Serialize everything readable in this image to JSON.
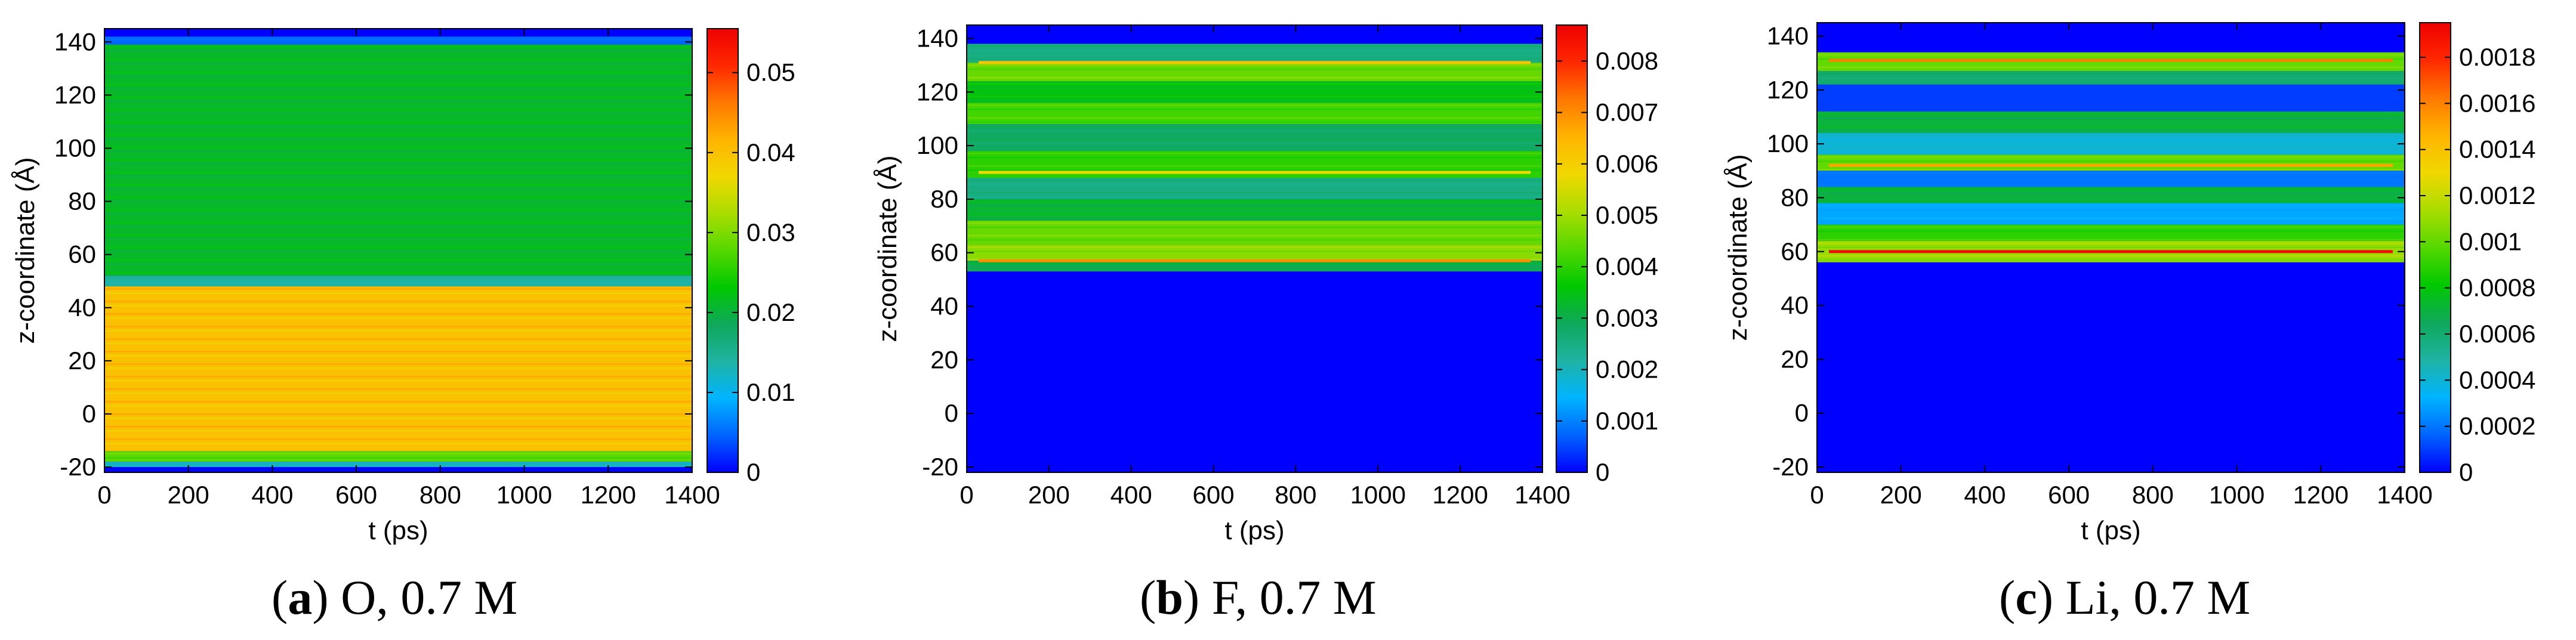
{
  "colors": {
    "colormap": [
      "#0000ff",
      "#0064ff",
      "#00b4ff",
      "#1fb3a3",
      "#0fa85a",
      "#00c800",
      "#55d800",
      "#aadd00",
      "#f0d800",
      "#ffb400",
      "#ff7800",
      "#ff2800",
      "#ee0000"
    ],
    "frame": "#000000"
  },
  "chart_data": [
    {
      "type": "heatmap",
      "panel_id": "a",
      "caption_letter": "a",
      "caption_text": "O, 0.7 M",
      "xlabel": "t (ps)",
      "ylabel": "z-coordinate (Å)",
      "xlim": [
        0,
        1400
      ],
      "ylim": [
        -22,
        145
      ],
      "xticks": [
        "0",
        "200",
        "400",
        "600",
        "800",
        "1000",
        "1200",
        "1400"
      ],
      "yticks": [
        "-20",
        "0",
        "20",
        "40",
        "60",
        "80",
        "100",
        "120",
        "140"
      ],
      "colorbar": {
        "min": 0,
        "max": 0.0555,
        "ticks": [
          "0",
          "0.01",
          "0.02",
          "0.03",
          "0.04",
          "0.05"
        ],
        "tick_values": [
          0,
          0.01,
          0.02,
          0.03,
          0.04,
          0.05
        ]
      },
      "bands": [
        {
          "z_from": 142,
          "z_to": 145,
          "level": 0.0
        },
        {
          "z_from": 139,
          "z_to": 142,
          "level": 0.005
        },
        {
          "z_from": 52,
          "z_to": 139,
          "level": 0.021
        },
        {
          "z_from": 48,
          "z_to": 52,
          "level": 0.014
        },
        {
          "z_from": -14,
          "z_to": 48,
          "level": 0.04
        },
        {
          "z_from": -18,
          "z_to": -14,
          "level": 0.028
        },
        {
          "z_from": -20,
          "z_to": -18,
          "level": 0.012
        },
        {
          "z_from": -22,
          "z_to": -20,
          "level": 0.0
        }
      ],
      "highlights": []
    },
    {
      "type": "heatmap",
      "panel_id": "b",
      "caption_letter": "b",
      "caption_text": "F, 0.7 M",
      "xlabel": "t (ps)",
      "ylabel": "z-coordinate (Å)",
      "xlim": [
        0,
        1400
      ],
      "ylim": [
        -22,
        145
      ],
      "xticks": [
        "0",
        "200",
        "400",
        "600",
        "800",
        "1000",
        "1200",
        "1400"
      ],
      "yticks": [
        "-20",
        "0",
        "20",
        "40",
        "60",
        "80",
        "100",
        "120",
        "140"
      ],
      "colorbar": {
        "min": 0,
        "max": 0.0087,
        "ticks": [
          "0",
          "0.001",
          "0.002",
          "0.003",
          "0.004",
          "0.005",
          "0.006",
          "0.007",
          "0.008"
        ],
        "tick_values": [
          0,
          0.001,
          0.002,
          0.003,
          0.004,
          0.005,
          0.006,
          0.007,
          0.008
        ]
      },
      "bands": [
        {
          "z_from": 138,
          "z_to": 145,
          "level": 0.0
        },
        {
          "z_from": 131,
          "z_to": 138,
          "level": 0.0025
        },
        {
          "z_from": 124,
          "z_to": 131,
          "level": 0.0045
        },
        {
          "z_from": 116,
          "z_to": 124,
          "level": 0.0035
        },
        {
          "z_from": 108,
          "z_to": 116,
          "level": 0.0042
        },
        {
          "z_from": 98,
          "z_to": 108,
          "level": 0.0028
        },
        {
          "z_from": 88,
          "z_to": 98,
          "level": 0.004
        },
        {
          "z_from": 80,
          "z_to": 88,
          "level": 0.0025
        },
        {
          "z_from": 72,
          "z_to": 80,
          "level": 0.0032
        },
        {
          "z_from": 63,
          "z_to": 72,
          "level": 0.0045
        },
        {
          "z_from": 57,
          "z_to": 63,
          "level": 0.0048
        },
        {
          "z_from": 53,
          "z_to": 57,
          "level": 0.003
        },
        {
          "z_from": -22,
          "z_to": 53,
          "level": 0.0
        }
      ],
      "highlights": [
        {
          "z": 131,
          "level": 0.0062
        },
        {
          "z": 90,
          "level": 0.0058
        },
        {
          "z": 57,
          "level": 0.007
        }
      ]
    },
    {
      "type": "heatmap",
      "panel_id": "c",
      "caption_letter": "c",
      "caption_text": "Li, 0.7 M",
      "xlabel": "t (ps)",
      "ylabel": "z-coordinate (Å)",
      "xlim": [
        0,
        1400
      ],
      "ylim": [
        -22,
        145
      ],
      "xticks": [
        "0",
        "200",
        "400",
        "600",
        "800",
        "1000",
        "1200",
        "1400"
      ],
      "yticks": [
        "-20",
        "0",
        "20",
        "40",
        "60",
        "80",
        "100",
        "120",
        "140"
      ],
      "colorbar": {
        "min": 0,
        "max": 0.00195,
        "ticks": [
          "0",
          "0.0002",
          "0.0004",
          "0.0006",
          "0.0008",
          "0.001",
          "0.0012",
          "0.0014",
          "0.0016",
          "0.0018"
        ],
        "tick_values": [
          0,
          0.0002,
          0.0004,
          0.0006,
          0.0008,
          0.001,
          0.0012,
          0.0014,
          0.0016,
          0.0018
        ]
      },
      "bands": [
        {
          "z_from": 134,
          "z_to": 145,
          "level": 0.0
        },
        {
          "z_from": 127,
          "z_to": 134,
          "level": 0.001
        },
        {
          "z_from": 122,
          "z_to": 127,
          "level": 0.0006
        },
        {
          "z_from": 112,
          "z_to": 122,
          "level": 0.0001
        },
        {
          "z_from": 104,
          "z_to": 112,
          "level": 0.0007
        },
        {
          "z_from": 96,
          "z_to": 104,
          "level": 0.0004
        },
        {
          "z_from": 90,
          "z_to": 96,
          "level": 0.001
        },
        {
          "z_from": 84,
          "z_to": 90,
          "level": 0.0002
        },
        {
          "z_from": 78,
          "z_to": 84,
          "level": 0.0007
        },
        {
          "z_from": 70,
          "z_to": 78,
          "level": 0.0003
        },
        {
          "z_from": 64,
          "z_to": 70,
          "level": 0.0009
        },
        {
          "z_from": 56,
          "z_to": 64,
          "level": 0.0011
        },
        {
          "z_from": -22,
          "z_to": 56,
          "level": 0.0
        }
      ],
      "highlights": [
        {
          "z": 131,
          "level": 0.0016
        },
        {
          "z": 60,
          "level": 0.0019
        },
        {
          "z": 92,
          "level": 0.0015
        }
      ]
    }
  ],
  "captions": [
    {
      "letter": "a",
      "text": "O, 0.7 M"
    },
    {
      "letter": "b",
      "text": "F, 0.7 M"
    },
    {
      "letter": "c",
      "text": "Li, 0.7 M"
    }
  ]
}
